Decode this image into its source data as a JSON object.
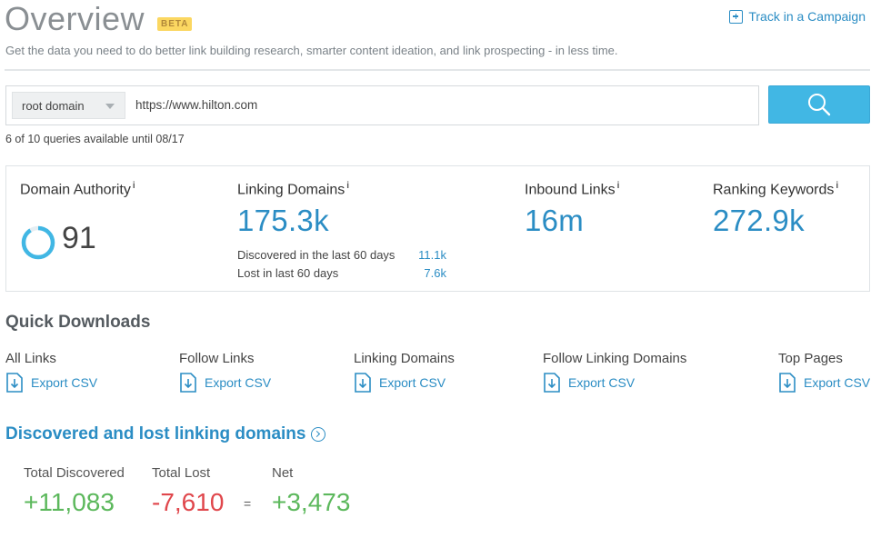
{
  "header": {
    "title": "Overview",
    "badge": "BETA",
    "track_label": "Track in a Campaign",
    "subtitle": "Get the data you need to do better link building research, smarter content ideation, and link prospecting - in less time."
  },
  "search": {
    "scope_selected": "root domain",
    "url_value": "https://www.hilton.com",
    "button_icon": "search-icon",
    "queries_text": "6 of 10 queries available until 08/17"
  },
  "stats": {
    "domain_authority": {
      "label": "Domain Authority",
      "info": "i",
      "value": "91",
      "score": 0.91
    },
    "linking_domains": {
      "label": "Linking Domains",
      "info": "i",
      "value": "175.3k",
      "discovered_label": "Discovered in the last 60 days",
      "discovered_value": "11.1k",
      "lost_label": "Lost in last 60 days",
      "lost_value": "7.6k"
    },
    "inbound_links": {
      "label": "Inbound Links",
      "info": "i",
      "value": "16m"
    },
    "ranking_keywords": {
      "label": "Ranking Keywords",
      "info": "i",
      "value": "272.9k"
    }
  },
  "quick_downloads": {
    "title": "Quick Downloads",
    "items": [
      {
        "label": "All Links",
        "link": "Export CSV"
      },
      {
        "label": "Follow Links",
        "link": "Export CSV"
      },
      {
        "label": "Linking Domains",
        "link": "Export CSV"
      },
      {
        "label": "Follow Linking Domains",
        "link": "Export CSV"
      },
      {
        "label": "Top Pages",
        "link": "Export CSV"
      }
    ]
  },
  "discovered_lost": {
    "title": "Discovered and lost linking domains",
    "total_discovered_label": "Total Discovered",
    "total_discovered_value": "+11,083",
    "total_lost_label": "Total Lost",
    "total_lost_value": "-7,610",
    "equals": "=",
    "net_label": "Net",
    "net_value": "+3,473"
  },
  "colors": {
    "accent": "#2b8dc4",
    "button": "#41b7e4",
    "positive": "#5cb85c",
    "negative": "#e0474c",
    "badge": "#fbd761"
  }
}
